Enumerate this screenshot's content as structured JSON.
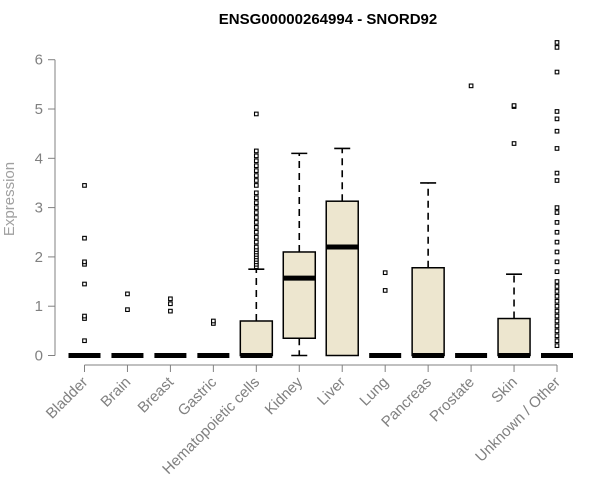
{
  "chart_data": {
    "type": "boxplot",
    "title": "ENSG00000264994 - SNORD92",
    "xlabel": "",
    "ylabel": "Expression",
    "ylim": [
      0,
      6.4
    ],
    "yticks": [
      0,
      1,
      2,
      3,
      4,
      5,
      6
    ],
    "grid": false,
    "box_fill": "#ede6cf",
    "categories": [
      "Bladder",
      "Brain",
      "Breast",
      "Gastric",
      "Hematopoietic cells",
      "Kidney",
      "Liver",
      "Lung",
      "Pancreas",
      "Prostate",
      "Skin",
      "Unknown / Other"
    ],
    "boxes": [
      {
        "q1": 0,
        "median": 0,
        "q3": 0,
        "whisker_low": 0,
        "whisker_high": 0,
        "outliers": [
          0.3,
          0.75,
          0.8,
          1.45,
          1.85,
          1.9,
          2.38,
          3.45
        ]
      },
      {
        "q1": 0,
        "median": 0,
        "q3": 0,
        "whisker_low": 0,
        "whisker_high": 0,
        "outliers": [
          0.93,
          1.25
        ]
      },
      {
        "q1": 0,
        "median": 0,
        "q3": 0,
        "whisker_low": 0,
        "whisker_high": 0,
        "outliers": [
          0.9,
          1.05,
          1.15
        ]
      },
      {
        "q1": 0,
        "median": 0,
        "q3": 0,
        "whisker_low": 0,
        "whisker_high": 0,
        "outliers": [
          0.65,
          0.7
        ]
      },
      {
        "q1": 0,
        "median": 0,
        "q3": 0.7,
        "whisker_low": 0,
        "whisker_high": 1.75,
        "outliers": [
          1.8,
          1.85,
          1.9,
          1.95,
          2.0,
          2.05,
          2.1,
          2.15,
          2.2,
          2.3,
          2.4,
          2.5,
          2.6,
          2.7,
          2.8,
          2.9,
          3.0,
          3.1,
          3.2,
          3.3,
          3.45,
          3.55,
          3.65,
          3.75,
          3.85,
          3.95,
          4.05,
          4.15,
          4.9
        ]
      },
      {
        "q1": 0.35,
        "median": 1.57,
        "q3": 2.1,
        "whisker_low": 0,
        "whisker_high": 4.1,
        "outliers": []
      },
      {
        "q1": 0,
        "median": 2.2,
        "q3": 3.13,
        "whisker_low": 0,
        "whisker_high": 4.2,
        "outliers": []
      },
      {
        "q1": 0,
        "median": 0,
        "q3": 0,
        "whisker_low": 0,
        "whisker_high": 0,
        "outliers": [
          1.32,
          1.68
        ]
      },
      {
        "q1": 0,
        "median": 0,
        "q3": 1.78,
        "whisker_low": 0,
        "whisker_high": 3.5,
        "outliers": []
      },
      {
        "q1": 0,
        "median": 0,
        "q3": 0,
        "whisker_low": 0,
        "whisker_high": 0,
        "outliers": [
          5.47
        ]
      },
      {
        "q1": 0,
        "median": 0,
        "q3": 0.75,
        "whisker_low": 0,
        "whisker_high": 1.65,
        "outliers": [
          4.3,
          5.05,
          5.07
        ]
      },
      {
        "q1": 0,
        "median": 0,
        "q3": 0,
        "whisker_low": 0,
        "whisker_high": 0,
        "outliers": [
          0.2,
          0.3,
          0.4,
          0.5,
          0.6,
          0.7,
          0.8,
          0.9,
          1.0,
          1.1,
          1.2,
          1.3,
          1.4,
          1.5,
          1.7,
          1.9,
          2.1,
          2.3,
          2.5,
          2.7,
          2.9,
          3.0,
          3.55,
          3.7,
          4.2,
          4.55,
          4.8,
          4.95,
          5.75,
          6.25,
          6.35
        ]
      }
    ]
  }
}
